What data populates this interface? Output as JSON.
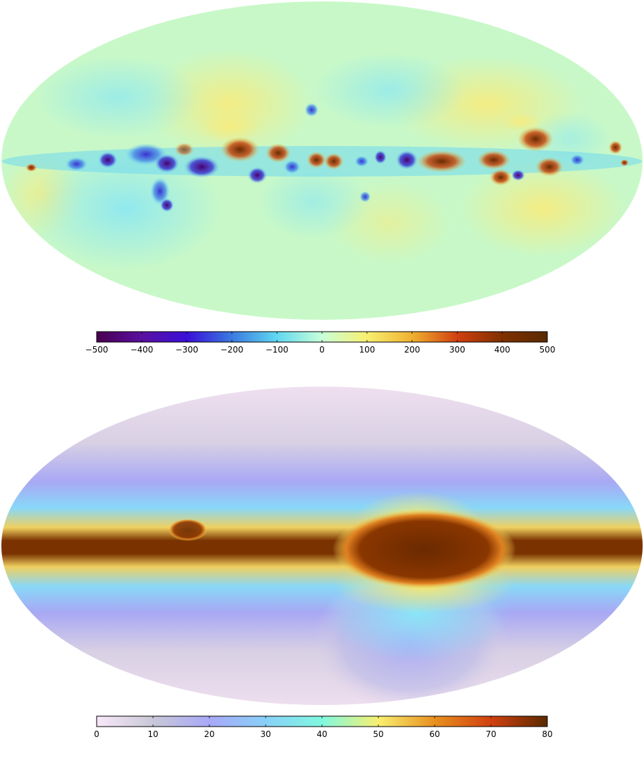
{
  "maps": [
    {
      "colorbar": {
        "min": -500,
        "max": 500,
        "ticks": [
          "−500",
          "−400",
          "−300",
          "−200",
          "−100",
          "0",
          "100",
          "200",
          "300",
          "400",
          "500"
        ],
        "tick_values": [
          -500,
          -400,
          -300,
          -200,
          -100,
          0,
          100,
          200,
          300,
          400,
          500
        ],
        "colors": [
          "#4a0050",
          "#5a10a0",
          "#3a10d8",
          "#3a7ae0",
          "#60d8f0",
          "#c8ffd8",
          "#f8f070",
          "#f0b030",
          "#d04010",
          "#803000",
          "#5a2a00"
        ]
      }
    },
    {
      "colorbar": {
        "min": 0,
        "max": 80,
        "ticks": [
          "0",
          "10",
          "20",
          "30",
          "40",
          "50",
          "60",
          "70",
          "80"
        ],
        "tick_values": [
          0,
          10,
          20,
          30,
          40,
          50,
          60,
          70,
          80
        ],
        "colors": [
          "#f8e8f8",
          "#c8c8d8",
          "#a8a8f8",
          "#88d0f8",
          "#80f8e0",
          "#f8f070",
          "#e89020",
          "#d04010",
          "#5a2a00"
        ]
      }
    }
  ]
}
